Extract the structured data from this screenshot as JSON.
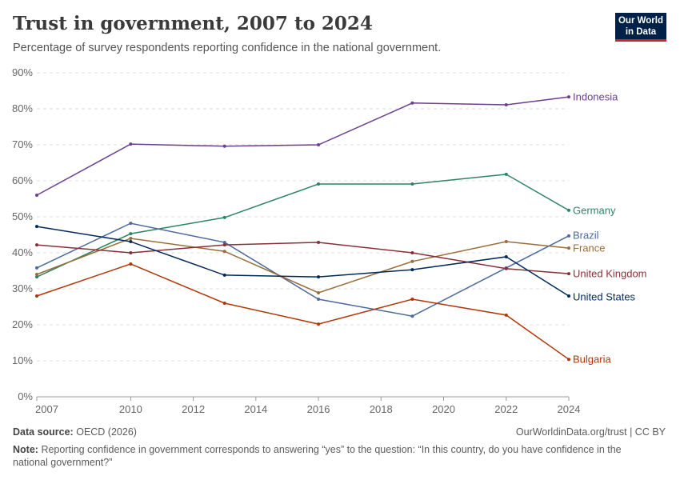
{
  "title": "Trust in government, 2007 to 2024",
  "subtitle": "Percentage of survey respondents reporting confidence in the national government.",
  "logo": "Our World in Data",
  "footer": {
    "source_label": "Data source:",
    "source": "OECD (2026)",
    "url": "OurWorldinData.org/trust | CC BY",
    "note_label": "Note:",
    "note": "Reporting confidence in government corresponds to answering “yes” to the question: “In this country, do you have confidence in the national government?”"
  },
  "chart_data": {
    "type": "line",
    "x_ticks": [
      "2007",
      "2010",
      "2012",
      "2014",
      "2016",
      "2018",
      "2020",
      "2022",
      "2024"
    ],
    "y_ticks": [
      "0%",
      "10%",
      "20%",
      "30%",
      "40%",
      "50%",
      "60%",
      "70%",
      "80%",
      "90%"
    ],
    "ylim": [
      0,
      90
    ],
    "xlim": [
      2007,
      2024
    ],
    "grid": "horizontal dashed",
    "legend": "inline-right",
    "x": [
      2007,
      2010,
      2013,
      2016,
      2019,
      2022,
      2024
    ],
    "series": [
      {
        "name": "Indonesia",
        "color": "#6d3e91",
        "values": [
          56.0,
          70.2,
          69.6,
          70.0,
          81.6,
          81.1,
          83.3
        ]
      },
      {
        "name": "Germany",
        "color": "#2c8465",
        "values": [
          33.3,
          45.3,
          49.8,
          59.1,
          59.1,
          61.8,
          51.8
        ]
      },
      {
        "name": "Brazil",
        "color": "#4c6a9c",
        "values": [
          35.8,
          48.2,
          42.9,
          27.1,
          22.4,
          35.8,
          44.7
        ]
      },
      {
        "name": "France",
        "color": "#996d39",
        "values": [
          34.0,
          44.0,
          40.4,
          28.9,
          37.6,
          43.1,
          41.3
        ]
      },
      {
        "name": "United Kingdom",
        "color": "#883039",
        "values": [
          42.2,
          40.0,
          42.2,
          42.9,
          40.0,
          35.6,
          34.2
        ]
      },
      {
        "name": "United States",
        "color": "#00295b",
        "values": [
          47.3,
          43.1,
          33.8,
          33.3,
          35.3,
          38.9,
          28.0
        ]
      },
      {
        "name": "Bulgaria",
        "color": "#b13507",
        "values": [
          28.0,
          36.9,
          26.0,
          20.2,
          27.1,
          22.7,
          10.4
        ]
      }
    ]
  }
}
